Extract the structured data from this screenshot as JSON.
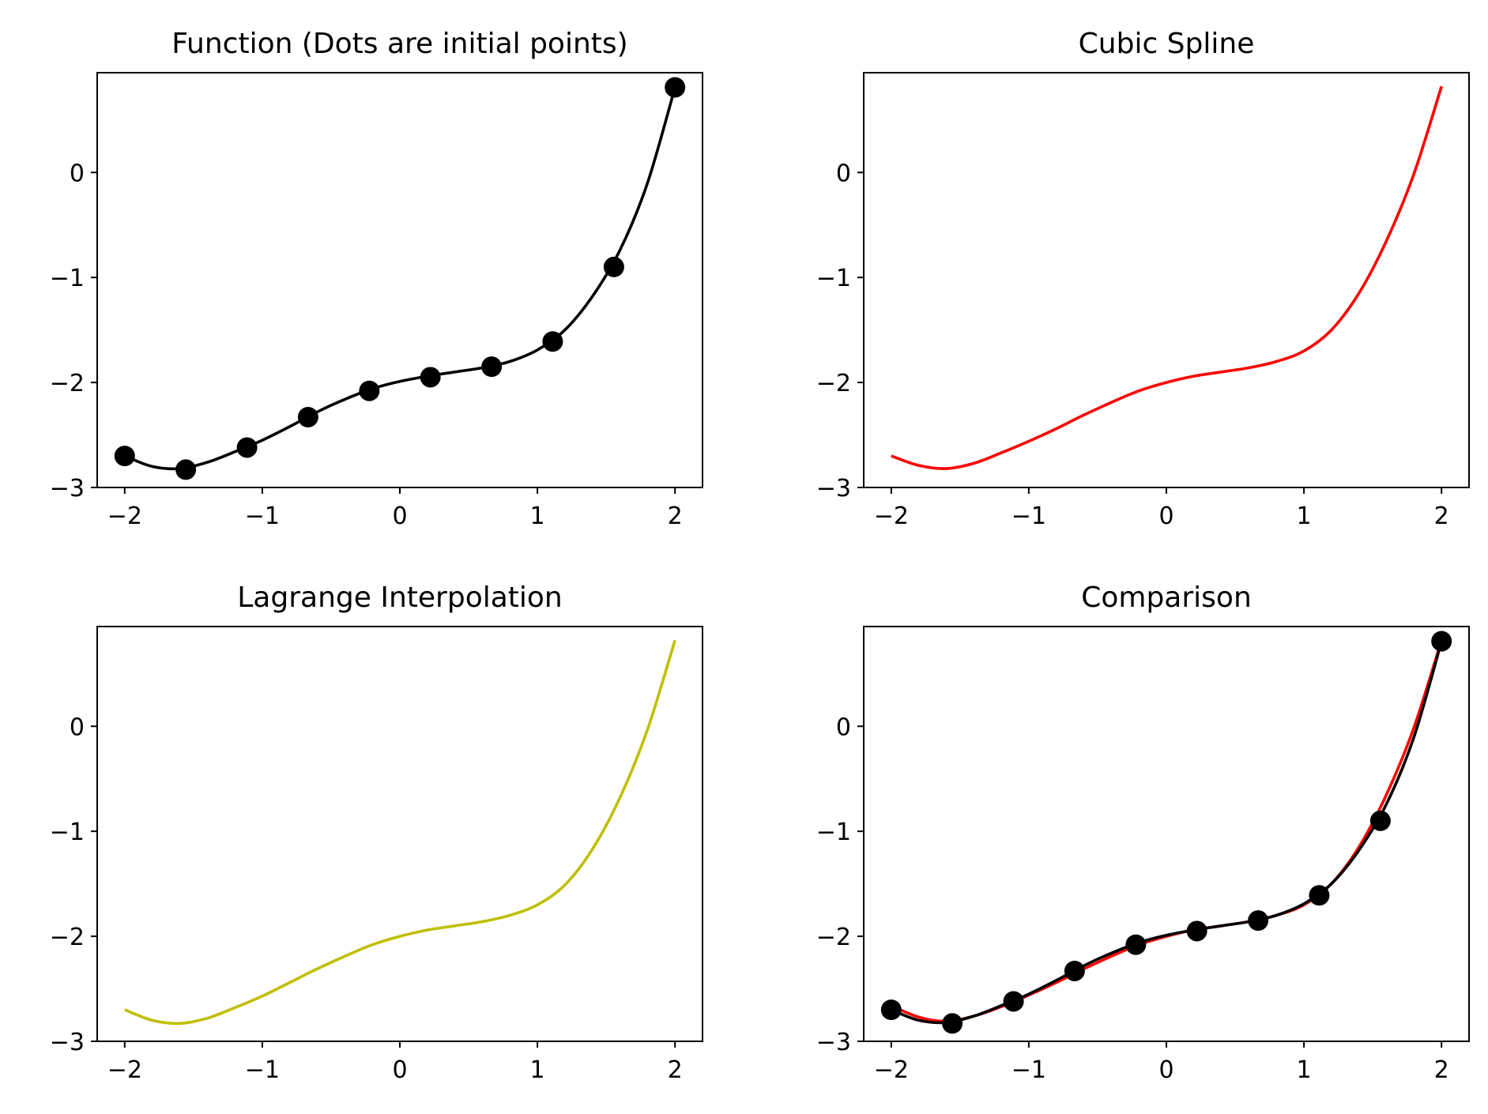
{
  "chart_data": [
    {
      "type": "line",
      "title": "Function (Dots are initial points)",
      "xlabel": "",
      "ylabel": "",
      "xlim": [
        -2.2,
        2.2
      ],
      "ylim": [
        -3,
        0.95
      ],
      "xticks": [
        -2,
        -1,
        0,
        1,
        2
      ],
      "yticks": [
        -3,
        -2,
        -1,
        0
      ],
      "xtick_labels": [
        "−2",
        "−1",
        "0",
        "1",
        "2"
      ],
      "ytick_labels": [
        "−3",
        "−2",
        "−1",
        "0"
      ],
      "series": [
        {
          "kind": "line",
          "color": "#000000",
          "x": [
            -2.0,
            -1.8,
            -1.6,
            -1.4,
            -1.2,
            -1.0,
            -0.8,
            -0.6,
            -0.4,
            -0.2,
            0.0,
            0.2,
            0.4,
            0.6,
            0.8,
            1.0,
            1.2,
            1.4,
            1.6,
            1.8,
            2.0
          ],
          "y": [
            -2.7,
            -2.8,
            -2.82,
            -2.76,
            -2.66,
            -2.55,
            -2.42,
            -2.28,
            -2.16,
            -2.06,
            -1.99,
            -1.94,
            -1.9,
            -1.86,
            -1.8,
            -1.69,
            -1.5,
            -1.18,
            -0.74,
            -0.1,
            0.81
          ]
        },
        {
          "kind": "scatter",
          "color": "#000000",
          "x": [
            -2.0,
            -1.556,
            -1.111,
            -0.667,
            -0.222,
            0.222,
            0.667,
            1.111,
            1.556,
            2.0
          ],
          "y": [
            -2.7,
            -2.83,
            -2.62,
            -2.33,
            -2.08,
            -1.95,
            -1.85,
            -1.61,
            -0.9,
            0.81
          ]
        }
      ]
    },
    {
      "type": "line",
      "title": "Cubic Spline",
      "xlabel": "",
      "ylabel": "",
      "xlim": [
        -2.2,
        2.2
      ],
      "ylim": [
        -3,
        0.95
      ],
      "xticks": [
        -2,
        -1,
        0,
        1,
        2
      ],
      "yticks": [
        -3,
        -2,
        -1,
        0
      ],
      "xtick_labels": [
        "−2",
        "−1",
        "0",
        "1",
        "2"
      ],
      "ytick_labels": [
        "−3",
        "−2",
        "−1",
        "0"
      ],
      "series": [
        {
          "kind": "line",
          "color": "#ff0000",
          "x": [
            -2.0,
            -1.8,
            -1.6,
            -1.4,
            -1.2,
            -1.0,
            -0.8,
            -0.6,
            -0.4,
            -0.2,
            0.0,
            0.2,
            0.4,
            0.6,
            0.8,
            1.0,
            1.2,
            1.4,
            1.6,
            1.8,
            2.0
          ],
          "y": [
            -2.7,
            -2.79,
            -2.82,
            -2.77,
            -2.67,
            -2.56,
            -2.44,
            -2.31,
            -2.19,
            -2.08,
            -2.0,
            -1.94,
            -1.9,
            -1.86,
            -1.8,
            -1.7,
            -1.5,
            -1.15,
            -0.65,
            -0.01,
            0.82
          ]
        }
      ]
    },
    {
      "type": "line",
      "title": "Lagrange Interpolation",
      "xlabel": "",
      "ylabel": "",
      "xlim": [
        -2.2,
        2.2
      ],
      "ylim": [
        -3,
        0.95
      ],
      "xticks": [
        -2,
        -1,
        0,
        1,
        2
      ],
      "yticks": [
        -3,
        -2,
        -1,
        0
      ],
      "xtick_labels": [
        "−2",
        "−1",
        "0",
        "1",
        "2"
      ],
      "ytick_labels": [
        "−3",
        "−2",
        "−1",
        "0"
      ],
      "series": [
        {
          "kind": "line",
          "color": "#bfbf00",
          "x": [
            -2.0,
            -1.8,
            -1.6,
            -1.4,
            -1.2,
            -1.0,
            -0.8,
            -0.6,
            -0.4,
            -0.2,
            0.0,
            0.2,
            0.4,
            0.6,
            0.8,
            1.0,
            1.2,
            1.4,
            1.6,
            1.8,
            2.0
          ],
          "y": [
            -2.7,
            -2.8,
            -2.83,
            -2.78,
            -2.68,
            -2.57,
            -2.44,
            -2.31,
            -2.19,
            -2.08,
            -2.0,
            -1.94,
            -1.9,
            -1.86,
            -1.8,
            -1.7,
            -1.51,
            -1.17,
            -0.68,
            -0.03,
            0.82
          ]
        }
      ]
    },
    {
      "type": "line",
      "title": "Comparison",
      "xlabel": "",
      "ylabel": "",
      "xlim": [
        -2.2,
        2.2
      ],
      "ylim": [
        -3,
        0.95
      ],
      "xticks": [
        -2,
        -1,
        0,
        1,
        2
      ],
      "yticks": [
        -3,
        -2,
        -1,
        0
      ],
      "xtick_labels": [
        "−2",
        "−1",
        "0",
        "1",
        "2"
      ],
      "ytick_labels": [
        "−3",
        "−2",
        "−1",
        "0"
      ],
      "series": [
        {
          "kind": "line",
          "color": "#ff0000",
          "x": [
            -2.0,
            -1.8,
            -1.6,
            -1.4,
            -1.2,
            -1.0,
            -0.8,
            -0.6,
            -0.4,
            -0.2,
            0.0,
            0.2,
            0.4,
            0.6,
            0.8,
            1.0,
            1.2,
            1.4,
            1.6,
            1.8,
            2.0
          ],
          "y": [
            -2.66,
            -2.77,
            -2.81,
            -2.76,
            -2.67,
            -2.56,
            -2.44,
            -2.31,
            -2.19,
            -2.08,
            -2.0,
            -1.94,
            -1.9,
            -1.86,
            -1.8,
            -1.7,
            -1.5,
            -1.15,
            -0.65,
            -0.01,
            0.82
          ]
        },
        {
          "kind": "line",
          "color": "#000000",
          "x": [
            -2.0,
            -1.8,
            -1.6,
            -1.4,
            -1.2,
            -1.0,
            -0.8,
            -0.6,
            -0.4,
            -0.2,
            0.0,
            0.2,
            0.4,
            0.6,
            0.8,
            1.0,
            1.2,
            1.4,
            1.6,
            1.8,
            2.0
          ],
          "y": [
            -2.7,
            -2.8,
            -2.82,
            -2.76,
            -2.66,
            -2.55,
            -2.42,
            -2.28,
            -2.16,
            -2.06,
            -1.99,
            -1.94,
            -1.9,
            -1.86,
            -1.8,
            -1.69,
            -1.5,
            -1.18,
            -0.74,
            -0.1,
            0.81
          ]
        },
        {
          "kind": "scatter",
          "color": "#000000",
          "x": [
            -2.0,
            -1.556,
            -1.111,
            -0.667,
            -0.222,
            0.222,
            0.667,
            1.111,
            1.556,
            2.0
          ],
          "y": [
            -2.7,
            -2.83,
            -2.62,
            -2.33,
            -2.08,
            -1.95,
            -1.85,
            -1.61,
            -0.9,
            0.81
          ]
        }
      ]
    }
  ]
}
